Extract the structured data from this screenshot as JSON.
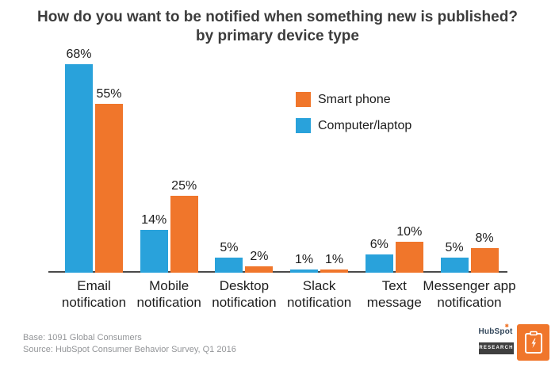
{
  "title": {
    "line1": "How do you want to be notified when something new is published?",
    "line2": "by primary device type"
  },
  "legend": {
    "items": [
      {
        "label": "Smart phone",
        "color": "#f0762b"
      },
      {
        "label": "Computer/laptop",
        "color": "#29a2db"
      }
    ]
  },
  "chart_data": {
    "type": "bar",
    "title": "How do you want to be notified when something new is published?",
    "subtitle": "by primary device type",
    "categories": [
      "Email notification",
      "Mobile notification",
      "Desktop notification",
      "Slack notification",
      "Text message",
      "Messenger app notification"
    ],
    "categories_lines": [
      [
        "Email",
        "notification"
      ],
      [
        "Mobile",
        "notification"
      ],
      [
        "Desktop",
        "notification"
      ],
      [
        "Slack",
        "notification"
      ],
      [
        "Text",
        "message"
      ],
      [
        "Messenger app",
        "notification"
      ]
    ],
    "series": [
      {
        "name": "Computer/laptop",
        "color": "#29a2db",
        "values": [
          68,
          14,
          5,
          1,
          6,
          5
        ]
      },
      {
        "name": "Smart phone",
        "color": "#f0762b",
        "values": [
          55,
          25,
          2,
          1,
          10,
          8
        ]
      }
    ],
    "value_suffix": "%",
    "ylim": [
      0,
      75
    ],
    "grid": false,
    "legend_position": "inside-top-right",
    "bar_value_labels": true
  },
  "footer": {
    "base": "Base: 1091 Global Consumers",
    "source": "Source: HubSpot Consumer Behavior Survey, Q1 2016"
  },
  "branding": {
    "wordmark": "HubSpot",
    "badge": "RESEARCH"
  },
  "colors": {
    "blue": "#29a2db",
    "orange": "#f0762b",
    "axis": "#4a4a4a",
    "title_text": "#3c3c3c",
    "label_text": "#1d1d1d",
    "footer_text": "#939598",
    "badge_bg": "#3f3f3f"
  }
}
